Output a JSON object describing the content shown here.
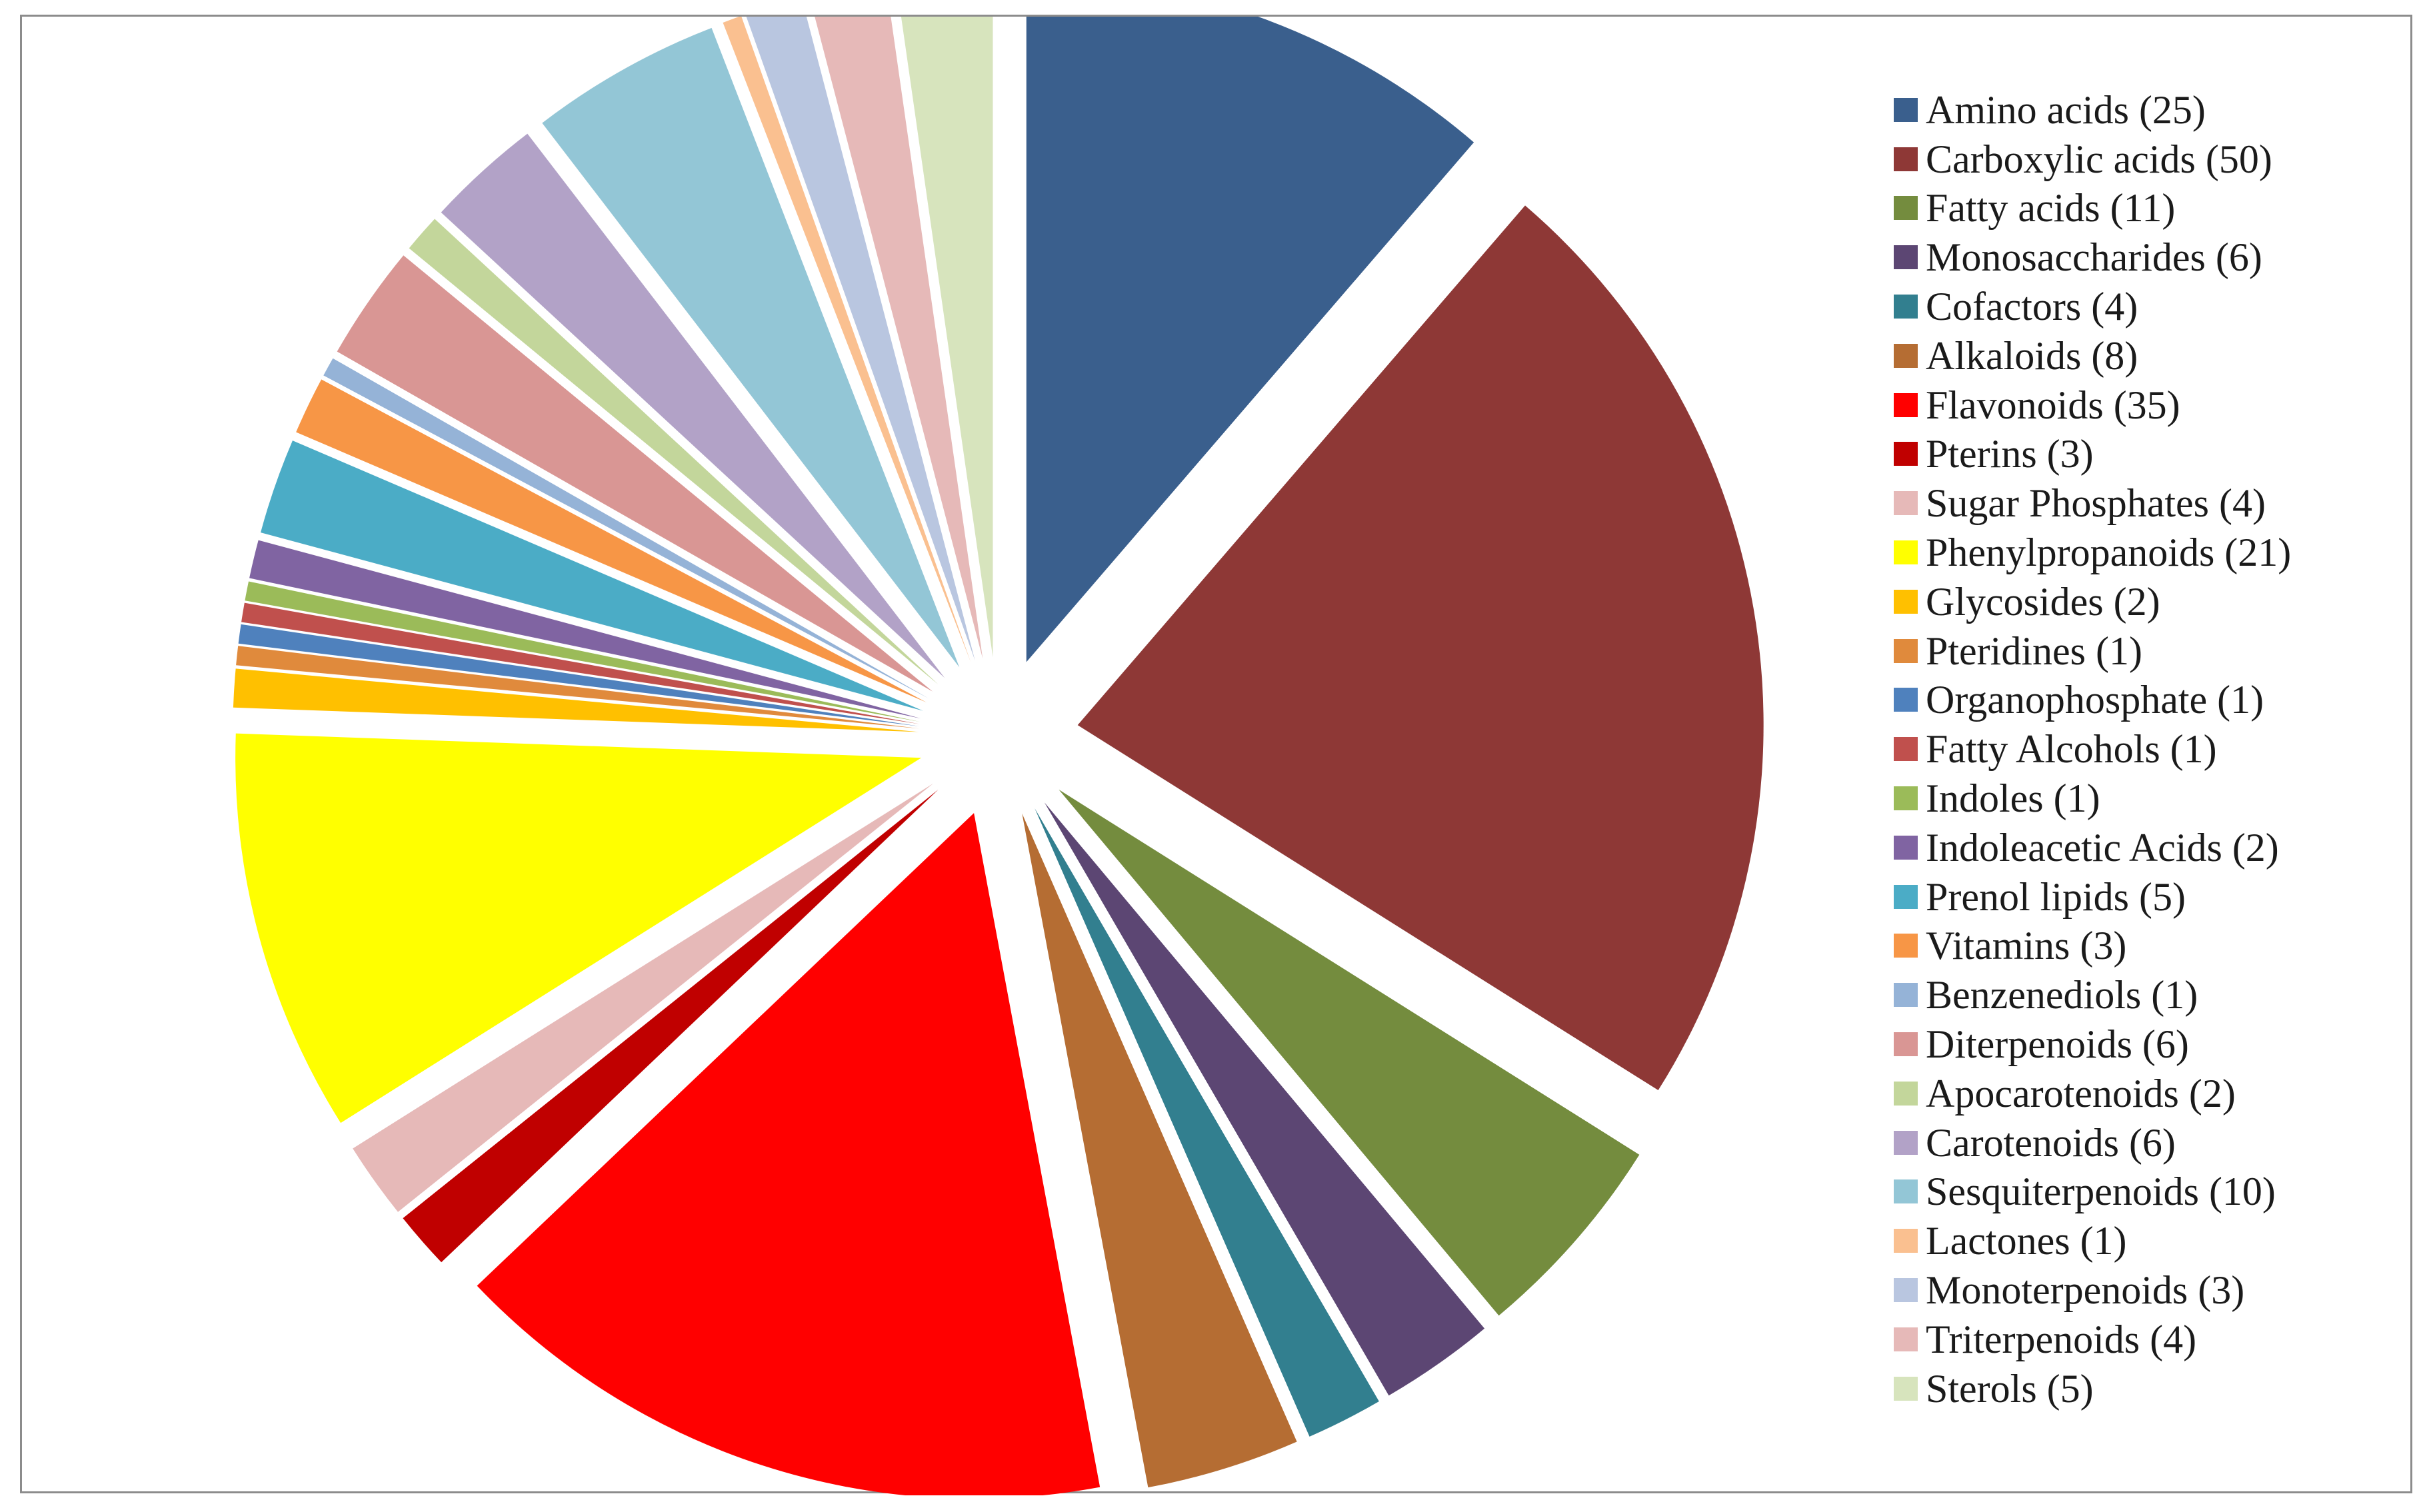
{
  "chart_data": {
    "type": "pie",
    "exploded": true,
    "legend_position": "right",
    "categories": [
      "Amino acids",
      "Carboxylic acids",
      "Fatty acids",
      "Monosaccharides",
      "Cofactors",
      "Alkaloids",
      "Flavonoids",
      "Pterins",
      "Sugar Phosphates",
      "Phenylpropanoids",
      "Glycosides",
      "Pteridines",
      "Organophosphate",
      "Fatty Alcohols",
      "Indoles",
      "Indoleacetic Acids",
      "Prenol lipids",
      "Vitamins",
      "Benzenediols",
      "Diterpenoids",
      "Apocarotenoids",
      "Carotenoids",
      "Sesquiterpenoids",
      "Lactones",
      "Monoterpenoids",
      "Triterpenoids",
      "Sterols"
    ],
    "values": [
      25,
      50,
      11,
      6,
      4,
      8,
      35,
      3,
      4,
      21,
      2,
      1,
      1,
      1,
      1,
      2,
      5,
      3,
      1,
      6,
      2,
      6,
      10,
      1,
      3,
      4,
      5
    ],
    "legend_labels": [
      "Amino acids (25)",
      "Carboxylic acids (50)",
      "Fatty acids (11)",
      "Monosaccharides (6)",
      "Cofactors (4)",
      "Alkaloids (8)",
      "Flavonoids (35)",
      "Pterins (3)",
      "Sugar Phosphates (4)",
      "Phenylpropanoids (21)",
      "Glycosides (2)",
      "Pteridines (1)",
      "Organophosphate (1)",
      "Fatty Alcohols (1)",
      "Indoles (1)",
      "Indoleacetic Acids (2)",
      "Prenol lipids (5)",
      "Vitamins (3)",
      "Benzenediols (1)",
      "Diterpenoids (6)",
      "Apocarotenoids (2)",
      "Carotenoids (6)",
      "Sesquiterpenoids (10)",
      "Lactones (1)",
      "Monoterpenoids (3)",
      "Triterpenoids (4)",
      "Sterols (5)"
    ],
    "colors": [
      "#3A5F8D",
      "#8E3836",
      "#748C3E",
      "#5C4673",
      "#327F8F",
      "#B56D33",
      "#FF0000",
      "#C00000",
      "#E6B9B8",
      "#FFFF00",
      "#FFC000",
      "#E08A3C",
      "#4F81BD",
      "#C0504D",
      "#9BBB59",
      "#8064A2",
      "#4BACC6",
      "#F79646",
      "#95B3D7",
      "#D99694",
      "#C3D69B",
      "#B2A2C7",
      "#93C6D6",
      "#FAC090",
      "#B9C6E0",
      "#E6B9B8",
      "#D7E4BD"
    ]
  }
}
